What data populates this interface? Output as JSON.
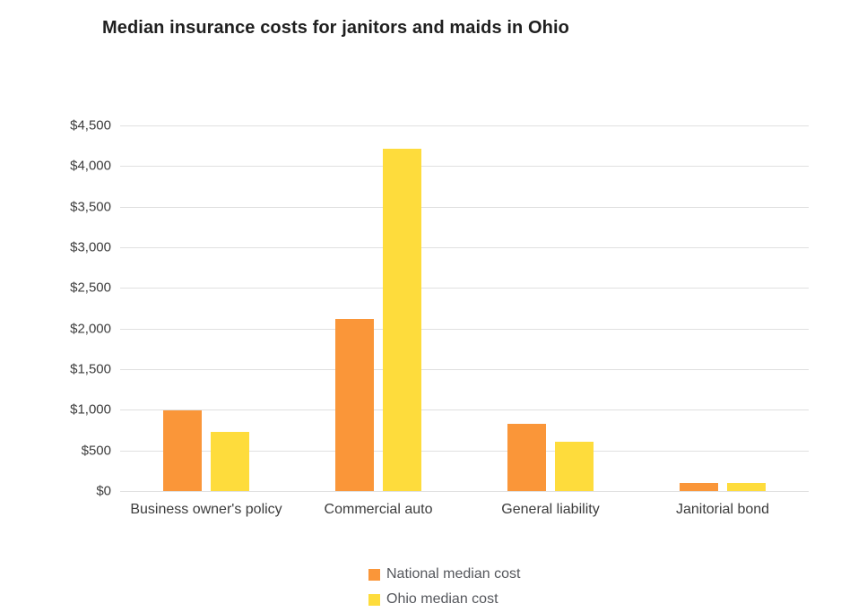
{
  "title": "Median insurance costs for janitors and maids in Ohio",
  "colors": {
    "national_series": "#fa9639",
    "ohio_series": "#fedc3c",
    "gridline": "#e0e0e0",
    "title_text": "#1f1f1f",
    "axis_text": "#3c3c3c",
    "legend_text": "#55575c",
    "background": "#ffffff"
  },
  "chart_data": {
    "type": "bar",
    "title": "Median insurance costs for janitors and maids in Ohio",
    "categories": [
      "Business owner's policy",
      "Commercial auto",
      "General liability",
      "Janitorial bond"
    ],
    "series": [
      {
        "name": "National median cost",
        "color": "#fa9639",
        "values": [
          990,
          2120,
          830,
          100
        ]
      },
      {
        "name": "Ohio median cost",
        "color": "#fedc3c",
        "values": [
          725,
          4210,
          610,
          95
        ]
      }
    ],
    "xlabel": "",
    "ylabel": "",
    "ylim": [
      0,
      4500
    ],
    "ytick_step": 500,
    "ytick_labels": [
      "$0",
      "$500",
      "$1,000",
      "$1,500",
      "$2,000",
      "$2,500",
      "$3,000",
      "$3,500",
      "$4,000",
      "$4,500"
    ],
    "grid": true,
    "grid_orientation": "horizontal",
    "legend_position": "bottom",
    "legend_orientation": "vertical"
  }
}
